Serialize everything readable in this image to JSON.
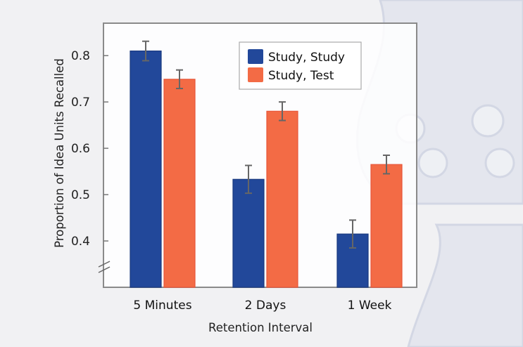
{
  "chart_data": {
    "type": "bar",
    "title": "",
    "xlabel": "Retention Interval",
    "ylabel": "Proportion of Idea Units Recalled",
    "categories": [
      "5 Minutes",
      "2 Days",
      "1 Week"
    ],
    "series": [
      {
        "name": "Study, Study",
        "color": "#22489a",
        "values": [
          0.81,
          0.533,
          0.415
        ],
        "errors": [
          0.021,
          0.03,
          0.03
        ]
      },
      {
        "name": "Study, Test",
        "color": "#f36b45",
        "values": [
          0.749,
          0.68,
          0.565
        ],
        "errors": [
          0.02,
          0.02,
          0.02
        ]
      }
    ],
    "yticks": [
      0.4,
      0.5,
      0.6,
      0.7,
      0.8
    ],
    "ytick_labels": [
      "0.4",
      "0.5",
      "0.6",
      "0.7",
      "0.8"
    ],
    "ylim": [
      0.3,
      0.87
    ],
    "axis_break": true,
    "grid": false,
    "legend_position": "top-right"
  }
}
